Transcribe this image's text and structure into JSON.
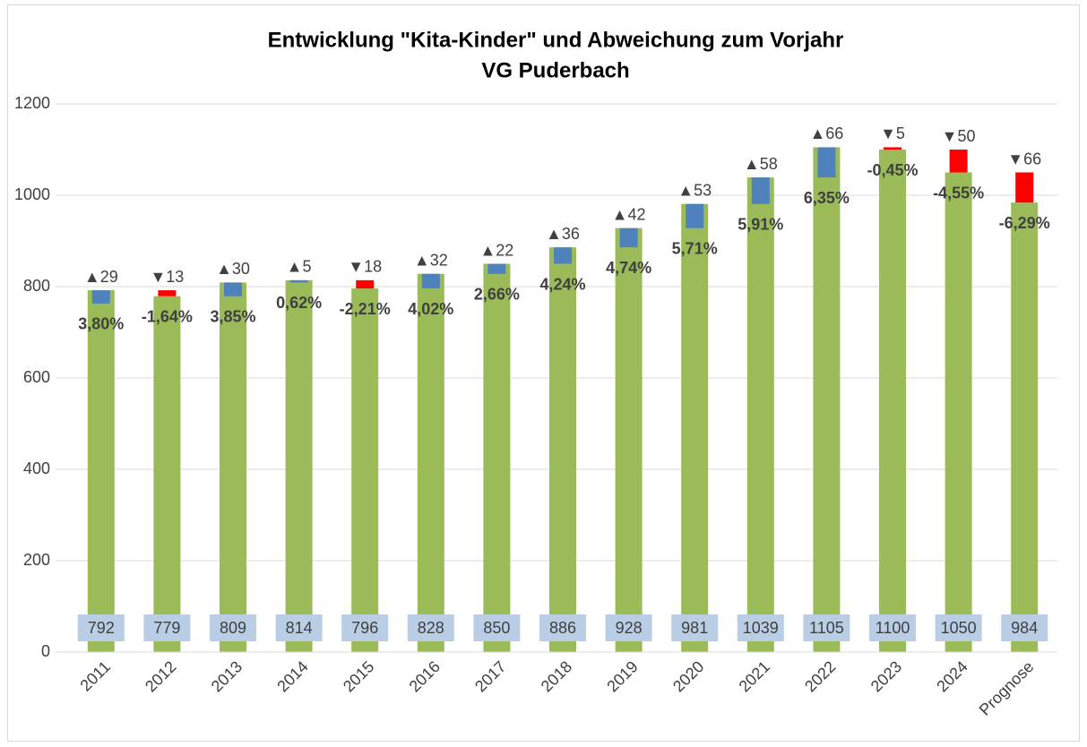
{
  "chart_data": {
    "type": "bar",
    "title": [
      "Entwicklung \"Kita-Kinder\" und Abweichung zum Vorjahr",
      "VG Puderbach"
    ],
    "categories": [
      "2011",
      "2012",
      "2013",
      "2014",
      "2015",
      "2016",
      "2017",
      "2018",
      "2019",
      "2020",
      "2021",
      "2022",
      "2023",
      "2024",
      "Prognose"
    ],
    "values": [
      792,
      779,
      809,
      814,
      796,
      828,
      850,
      886,
      928,
      981,
      1039,
      1105,
      1100,
      1050,
      984
    ],
    "color": "#9bbb59",
    "label_box_color": "#b9cde5",
    "change": {
      "values": [
        29,
        -13,
        30,
        5,
        -18,
        32,
        22,
        36,
        42,
        53,
        58,
        66,
        -5,
        -50,
        -66
      ],
      "value_labels": [
        "▲29",
        "▼13",
        "▲30",
        "▲5",
        "▼18",
        "▲32",
        "▲22",
        "▲36",
        "▲42",
        "▲53",
        "▲58",
        "▲66",
        "▼5",
        "▼50",
        "▼66"
      ],
      "up_color": "#4f81bd",
      "down_color": "#ff0000"
    },
    "percent": {
      "values": [
        3.8,
        -1.64,
        3.85,
        0.62,
        -2.21,
        4.02,
        2.66,
        4.24,
        4.74,
        5.71,
        5.91,
        6.35,
        -0.45,
        -4.55,
        -6.29
      ],
      "value_labels": [
        "3,80%",
        "-1,64%",
        "3,85%",
        "0,62%",
        "-2,21%",
        "4,02%",
        "2,66%",
        "4,24%",
        "4,74%",
        "5,71%",
        "5,91%",
        "6,35%",
        "-0,45%",
        "-4,55%",
        "-6,29%"
      ]
    },
    "ylim": [
      0,
      1200
    ],
    "yticks": [
      0,
      200,
      400,
      600,
      800,
      1000,
      1200
    ],
    "grid": true
  }
}
